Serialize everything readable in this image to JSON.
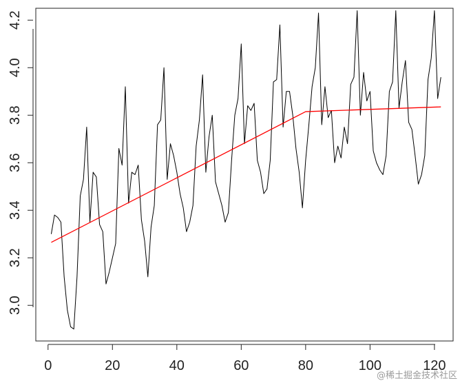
{
  "chart_data": {
    "type": "line",
    "title": "",
    "xlabel": "",
    "ylabel": "",
    "xlim": [
      -3.8,
      125.8
    ],
    "ylim": [
      2.85,
      4.25
    ],
    "xticks": [
      0,
      20,
      40,
      60,
      80,
      100,
      120
    ],
    "yticks": [
      3.0,
      3.2,
      3.4,
      3.6,
      3.8,
      4.0,
      4.2
    ],
    "grid": false,
    "box": true,
    "series": [
      {
        "color": "#000000",
        "x": [
          1,
          2,
          3,
          4,
          5,
          6,
          7,
          8,
          9,
          10,
          11,
          12,
          13,
          14,
          15,
          16,
          17,
          18,
          19,
          20,
          21,
          22,
          23,
          24,
          25,
          26,
          27,
          28,
          29,
          30,
          31,
          32,
          33,
          34,
          35,
          36,
          37,
          38,
          39,
          40,
          41,
          42,
          43,
          44,
          45,
          46,
          47,
          48,
          49,
          50,
          51,
          52,
          53,
          54,
          55,
          56,
          57,
          58,
          59,
          60,
          61,
          62,
          63,
          64,
          65,
          66,
          67,
          68,
          69,
          70,
          71,
          72,
          73,
          74,
          75,
          76,
          77,
          78,
          79,
          80,
          81,
          82,
          83,
          84,
          85,
          86,
          87,
          88,
          89,
          90,
          91,
          92,
          93,
          94,
          95,
          96,
          97,
          98,
          99,
          100,
          101,
          102,
          103,
          104,
          105,
          106,
          107,
          108,
          109,
          110,
          111,
          112,
          113,
          114,
          115,
          116,
          117,
          118,
          119,
          120,
          121,
          122
        ],
        "values": [
          3.3,
          3.38,
          3.37,
          3.35,
          3.12,
          2.98,
          2.91,
          2.9,
          3.12,
          3.46,
          3.53,
          3.75,
          3.35,
          3.56,
          3.54,
          3.34,
          3.31,
          3.09,
          3.14,
          3.2,
          3.26,
          3.66,
          3.59,
          3.92,
          3.43,
          3.56,
          3.55,
          3.59,
          3.36,
          3.27,
          3.12,
          3.33,
          3.42,
          3.76,
          3.78,
          4.0,
          3.53,
          3.68,
          3.63,
          3.56,
          3.47,
          3.41,
          3.31,
          3.35,
          3.42,
          3.67,
          3.78,
          3.97,
          3.56,
          3.71,
          3.8,
          3.52,
          3.47,
          3.42,
          3.35,
          3.39,
          3.61,
          3.8,
          3.87,
          4.1,
          3.68,
          3.84,
          3.82,
          3.85,
          3.61,
          3.56,
          3.47,
          3.49,
          3.61,
          3.94,
          3.95,
          4.18,
          3.75,
          3.9,
          3.9,
          3.8,
          3.66,
          3.56,
          3.41,
          3.61,
          3.76,
          3.92,
          4.0,
          4.23,
          3.76,
          3.92,
          3.79,
          3.82,
          3.6,
          3.67,
          3.62,
          3.75,
          3.68,
          3.93,
          3.96,
          4.24,
          3.8,
          3.98,
          3.86,
          3.9,
          3.65,
          3.6,
          3.57,
          3.55,
          3.63,
          3.9,
          3.94,
          4.24,
          3.83,
          3.94,
          4.03,
          3.77,
          3.74,
          3.63,
          3.51,
          3.55,
          3.63,
          3.95,
          4.04,
          4.24,
          3.87,
          3.96
        ]
      },
      {
        "color": "#ff0000",
        "x": [
          1,
          80,
          122
        ],
        "values": [
          3.265,
          3.815,
          3.835
        ]
      }
    ]
  },
  "watermark": "@稀土掘金技术社区"
}
